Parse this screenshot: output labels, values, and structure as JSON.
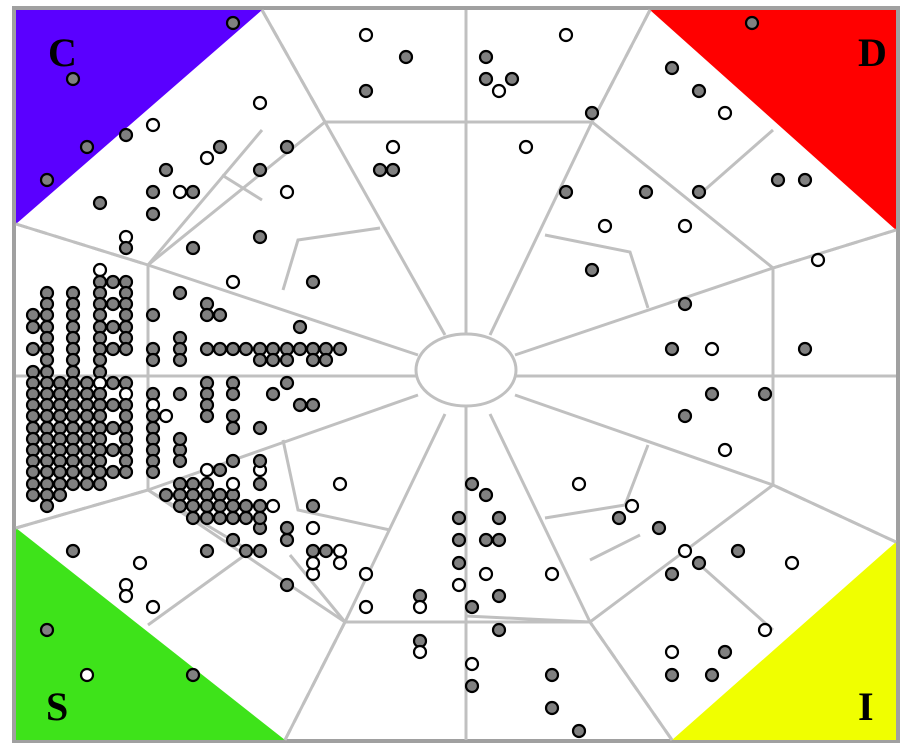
{
  "corners": {
    "top_left": {
      "label": "C",
      "color": "#5a00ff"
    },
    "top_right": {
      "label": "D",
      "color": "#ff0000"
    },
    "bottom_left": {
      "label": "S",
      "color": "#3ee31a"
    },
    "bottom_right": {
      "label": "I",
      "color": "#f0ff00"
    }
  },
  "point_colors": {
    "filled": "#808080",
    "open": "#ffffff"
  },
  "line_color": "#c0c0c0"
}
